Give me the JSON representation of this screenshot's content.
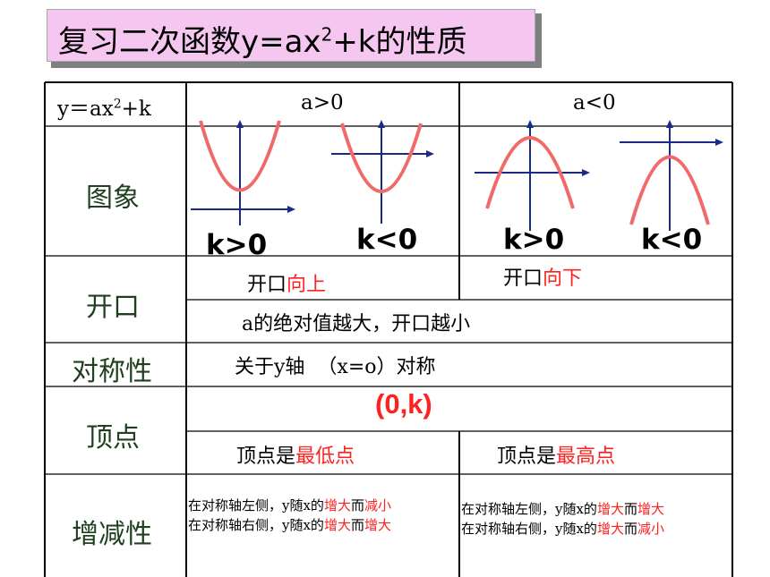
{
  "title": {
    "text": "复习二次函数y=ax",
    "sup": "2",
    "rest": "+k的性质"
  },
  "header": {
    "col0": "y＝ax",
    "col0_sup": "2",
    "col0_rest": "+k",
    "col1": "a>0",
    "col2": "a<0"
  },
  "rows": {
    "graph": "图象",
    "opening": "开口",
    "symmetry": "对称性",
    "vertex": "顶点",
    "monotonic": "增减性"
  },
  "graph_labels": {
    "k1": "k>0",
    "k2": "k<0",
    "k3": "k>0",
    "k4": "k<0"
  },
  "opening": {
    "pos_prefix": "开口",
    "pos_dir": "向上",
    "neg_prefix": "开口",
    "neg_dir": "向下",
    "note": "a的绝对值越大，开口越小"
  },
  "symmetry": {
    "text": "关于y轴  （x=o）对称"
  },
  "vertex": {
    "coord": "(0,k)",
    "pos_prefix": "顶点是",
    "pos_word": "最低点",
    "neg_prefix": "顶点是",
    "neg_word": "最高点"
  },
  "monotonic": {
    "pos_l1_a": "在对称轴左侧，y随x的",
    "pos_l1_b": "增大",
    "pos_l1_c": "而",
    "pos_l1_d": "减小",
    "pos_l2_a": "在对称轴右侧，y随x的",
    "pos_l2_b": "增大",
    "pos_l2_c": "而",
    "pos_l2_d": "增大",
    "neg_l1_a": "在对称轴左侧，y随x的",
    "neg_l1_b": "增大",
    "neg_l1_c": "而",
    "neg_l1_d": "增大",
    "neg_l2_a": "在对称轴右侧，y随x的",
    "neg_l2_b": "增大",
    "neg_l2_c": "而",
    "neg_l2_d": "减小"
  },
  "colors": {
    "parabola": "#f06a6a",
    "axis": "#1a2a8a",
    "highlight": "#ff2020",
    "title_bg": "#f5c7f0"
  }
}
